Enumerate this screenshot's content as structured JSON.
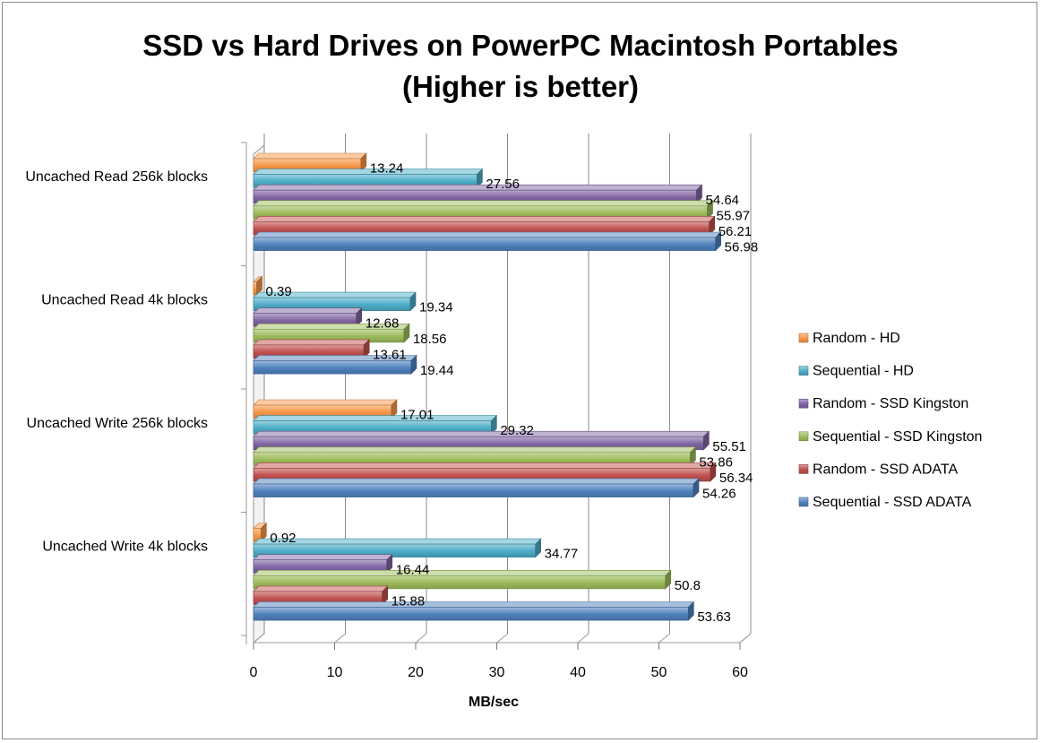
{
  "chart_data": {
    "type": "bar",
    "orientation": "horizontal",
    "title_line1": "SSD vs Hard Drives on PowerPC Macintosh Portables",
    "title_line2": "(Higher is better)",
    "xlabel": "MB/sec",
    "xlim": [
      0,
      60
    ],
    "xticks": [
      0,
      10,
      20,
      30,
      40,
      50,
      60
    ],
    "grid": true,
    "legend_position": "right",
    "categories": [
      "Uncached Read 256k blocks",
      "Uncached Read 4k blocks",
      "Uncached Write 256k blocks",
      "Uncached Write 4k blocks"
    ],
    "series": [
      {
        "name": "Random - HD",
        "color": "#f79646",
        "values": [
          13.24,
          0.39,
          17.01,
          0.92
        ]
      },
      {
        "name": "Sequential - HD",
        "color": "#4bacc6",
        "values": [
          27.56,
          19.34,
          29.32,
          34.77
        ]
      },
      {
        "name": "Random - SSD Kingston",
        "color": "#8064a2",
        "values": [
          54.64,
          12.68,
          55.51,
          16.44
        ]
      },
      {
        "name": "Sequential - SSD Kingston",
        "color": "#9bbb59",
        "values": [
          55.97,
          18.56,
          53.86,
          50.8
        ]
      },
      {
        "name": "Random - SSD ADATA",
        "color": "#c0504d",
        "values": [
          56.21,
          13.61,
          56.34,
          15.88
        ]
      },
      {
        "name": "Sequential - SSD ADATA",
        "color": "#4f81bd",
        "values": [
          56.98,
          19.44,
          54.26,
          53.63
        ]
      }
    ]
  }
}
